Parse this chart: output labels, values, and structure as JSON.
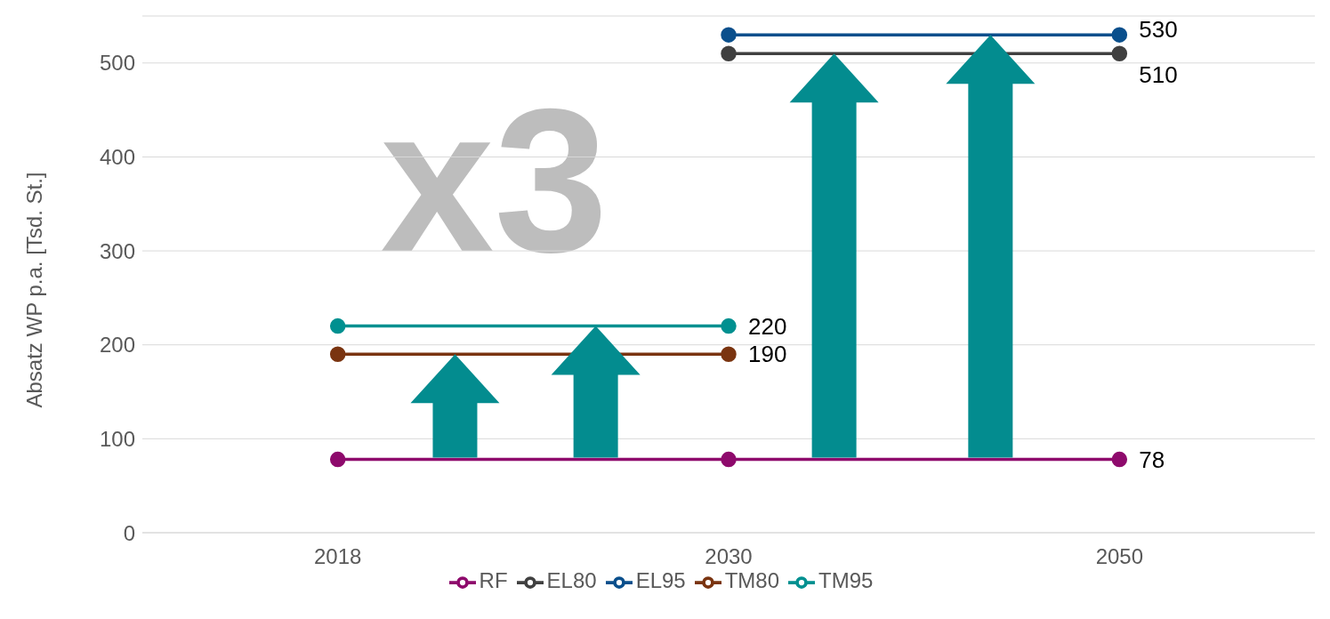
{
  "chart_data": {
    "type": "line",
    "categories": [
      "2018",
      "2030",
      "2050"
    ],
    "ylabel": "Absatz WP p.a. [Tsd. St.]",
    "ylim": [
      0,
      550
    ],
    "yticks": [
      0,
      100,
      200,
      300,
      400,
      500
    ],
    "grid": "y",
    "legend": "bottom",
    "marker": "circle",
    "annotations": [
      "x3"
    ],
    "series": [
      {
        "name": "RF",
        "color": "#8e0a6c",
        "values": [
          78,
          78,
          78
        ],
        "value_labels": [
          null,
          null,
          "78"
        ]
      },
      {
        "name": "EL80",
        "color": "#404040",
        "values": [
          null,
          510,
          510
        ],
        "value_labels": [
          null,
          null,
          "510"
        ]
      },
      {
        "name": "EL95",
        "color": "#0a4f8c",
        "values": [
          null,
          530,
          530
        ],
        "value_labels": [
          null,
          null,
          "530"
        ]
      },
      {
        "name": "TM80",
        "color": "#7a3410",
        "values": [
          190,
          190,
          null
        ],
        "value_labels": [
          null,
          "190",
          null
        ]
      },
      {
        "name": "TM95",
        "color": "#009090",
        "values": [
          220,
          220,
          null
        ],
        "value_labels": [
          null,
          "220",
          null
        ]
      }
    ]
  }
}
